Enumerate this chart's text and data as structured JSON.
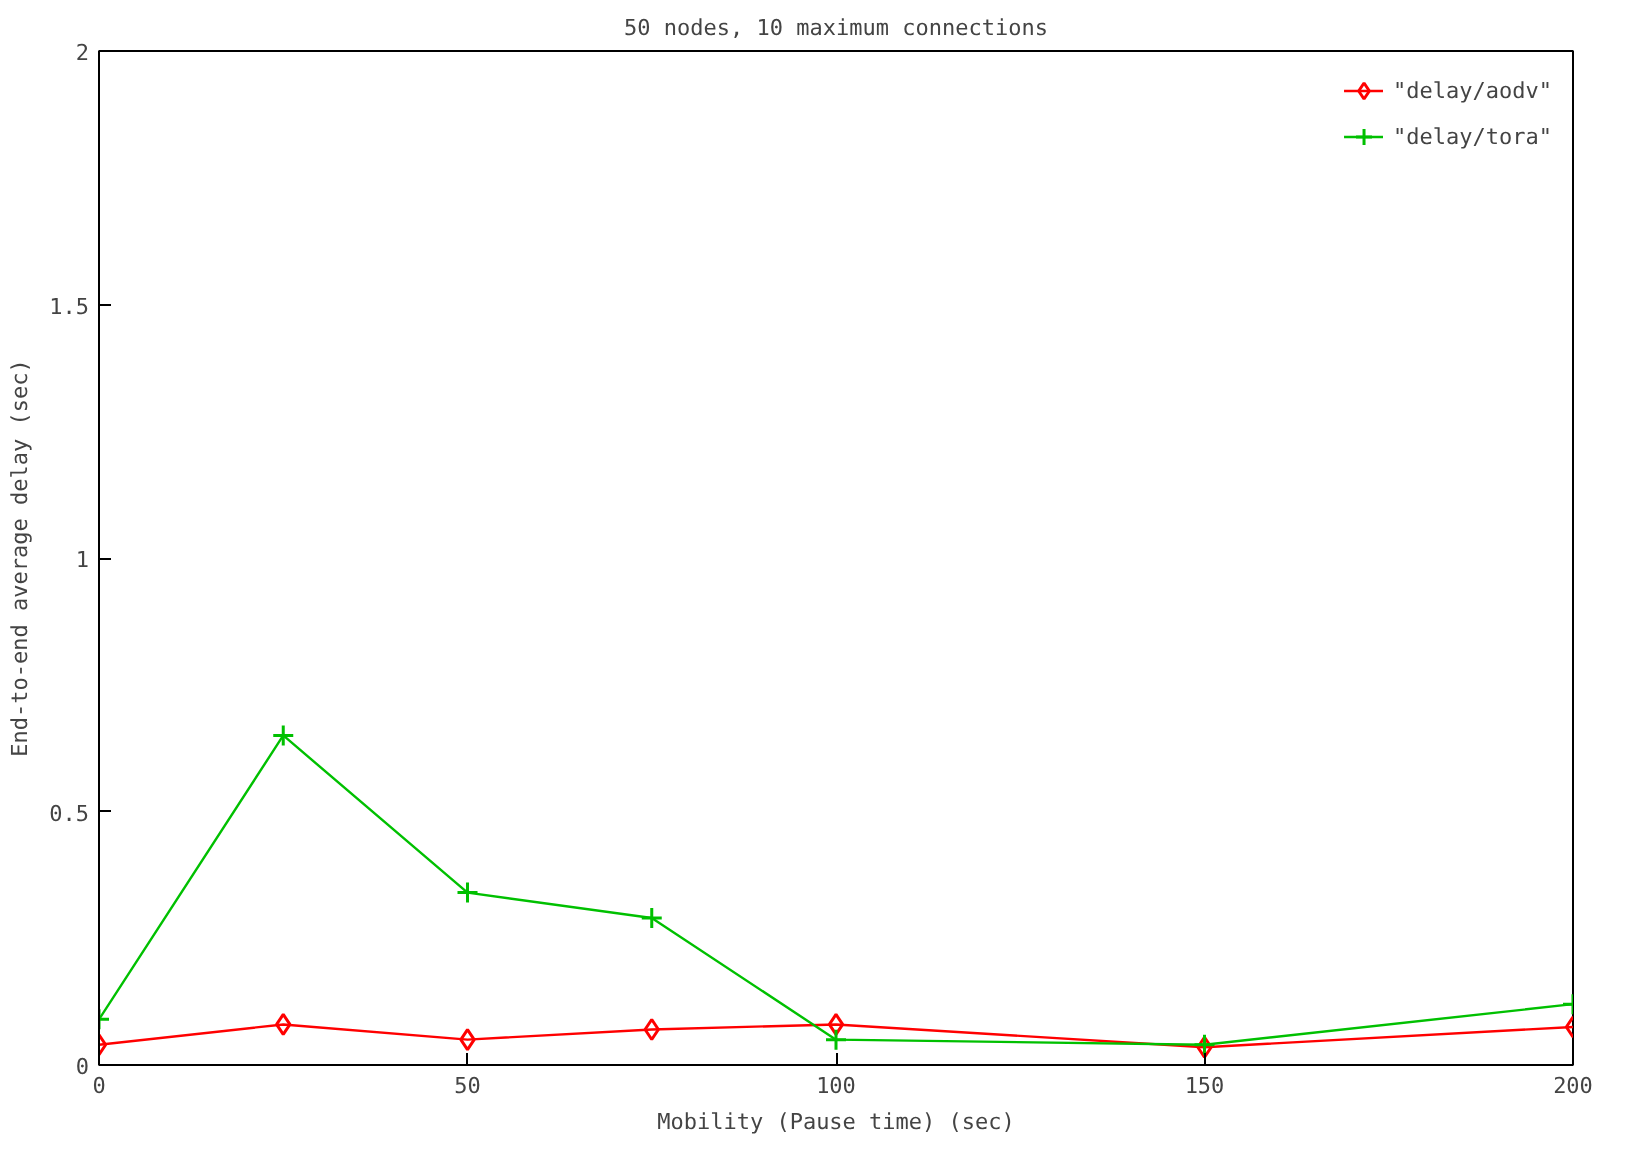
{
  "chart_data": {
    "type": "line",
    "title": "50 nodes, 10 maximum connections",
    "xlabel": "Mobility (Pause time) (sec)",
    "ylabel": "End-to-end average delay (sec)",
    "x": [
      0,
      25,
      50,
      75,
      100,
      150,
      200
    ],
    "series": [
      {
        "name": "\"delay/aodv\"",
        "color": "#ff0000",
        "marker": "diamond",
        "values": [
          0.04,
          0.08,
          0.05,
          0.07,
          0.08,
          0.035,
          0.075
        ]
      },
      {
        "name": "\"delay/tora\"",
        "color": "#00c000",
        "marker": "cross",
        "values": [
          0.09,
          0.65,
          0.34,
          0.29,
          0.05,
          0.04,
          0.12
        ]
      }
    ],
    "xlim": [
      0,
      200
    ],
    "xticks": [
      0,
      50,
      100,
      150,
      200
    ],
    "ylim": [
      0,
      2
    ],
    "yticks": [
      0,
      0.5,
      1,
      1.5,
      2
    ],
    "grid": false,
    "legend": "top right",
    "line_style": "solid"
  }
}
